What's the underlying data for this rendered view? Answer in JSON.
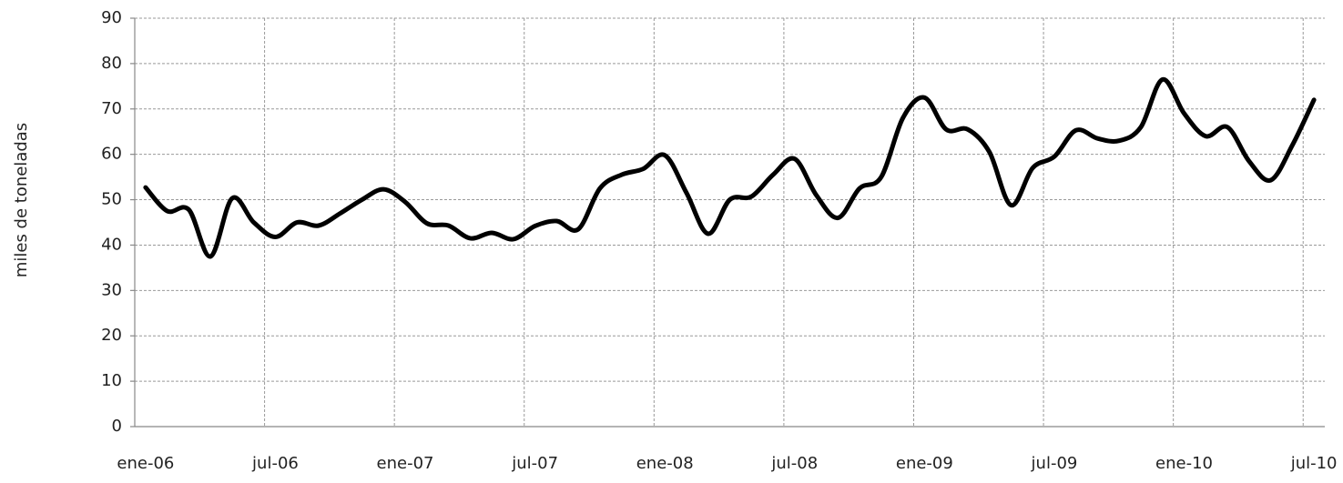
{
  "chart_data": {
    "type": "line",
    "y_label": "miles de toneladas",
    "categories": [
      "ene-06",
      null,
      null,
      null,
      null,
      null,
      "jul-06",
      null,
      null,
      null,
      null,
      null,
      "ene-07",
      null,
      null,
      null,
      null,
      null,
      "jul-07",
      null,
      null,
      null,
      null,
      null,
      "ene-08",
      null,
      null,
      null,
      null,
      null,
      "jul-08",
      null,
      null,
      null,
      null,
      null,
      "ene-09",
      null,
      null,
      null,
      null,
      null,
      "jul-09",
      null,
      null,
      null,
      null,
      null,
      "ene-10",
      null,
      null,
      null,
      null,
      null,
      "jul-10"
    ],
    "values": [
      52.7,
      47.5,
      47.8,
      37.5,
      50.3,
      45,
      41.8,
      45,
      44.3,
      47,
      50,
      52.3,
      49.5,
      44.8,
      44.3,
      41.5,
      42.7,
      41.3,
      44.2,
      45.3,
      43.5,
      52.5,
      55.5,
      56.8,
      59.8,
      51.5,
      42.5,
      50,
      50.7,
      55.5,
      59,
      51,
      46,
      52.5,
      55,
      68,
      72.5,
      65.5,
      65.5,
      60.5,
      48.8,
      57,
      59.5,
      65.3,
      63.5,
      63,
      66,
      76.5,
      69,
      64,
      66,
      58.5,
      54.3,
      62,
      72
    ],
    "color": "#000000",
    "ylim": [
      0,
      90
    ],
    "yticks": [
      0,
      10,
      20,
      30,
      40,
      50,
      60,
      70,
      80,
      90
    ],
    "grid": true
  }
}
